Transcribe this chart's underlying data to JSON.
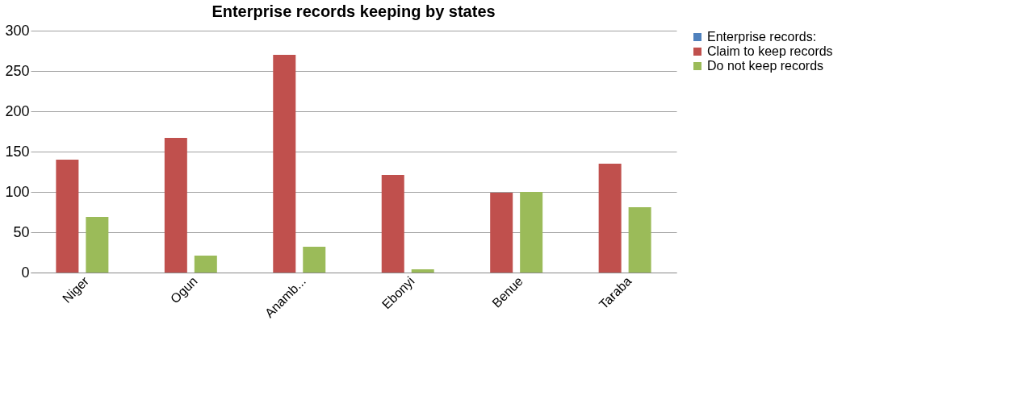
{
  "chart_data": {
    "type": "bar",
    "title": "Enterprise records keeping by states",
    "categories": [
      "Niger",
      "Ogun",
      "Anamb...",
      "Ebonyi",
      "Benue",
      "Taraba"
    ],
    "series": [
      {
        "name": "Enterprise records:",
        "color": "#4f81bd",
        "values": [
          null,
          null,
          null,
          null,
          null,
          null
        ]
      },
      {
        "name": "Claim to keep records",
        "color": "#c0504d",
        "values": [
          140,
          167,
          270,
          121,
          99,
          135
        ]
      },
      {
        "name": "Do not keep records",
        "color": "#9bbb59",
        "values": [
          69,
          21,
          32,
          4,
          100,
          81
        ]
      }
    ],
    "ylim": [
      0,
      300
    ],
    "yticks": [
      0,
      50,
      100,
      150,
      200,
      250,
      300
    ],
    "grid": "y",
    "legend": "right"
  }
}
